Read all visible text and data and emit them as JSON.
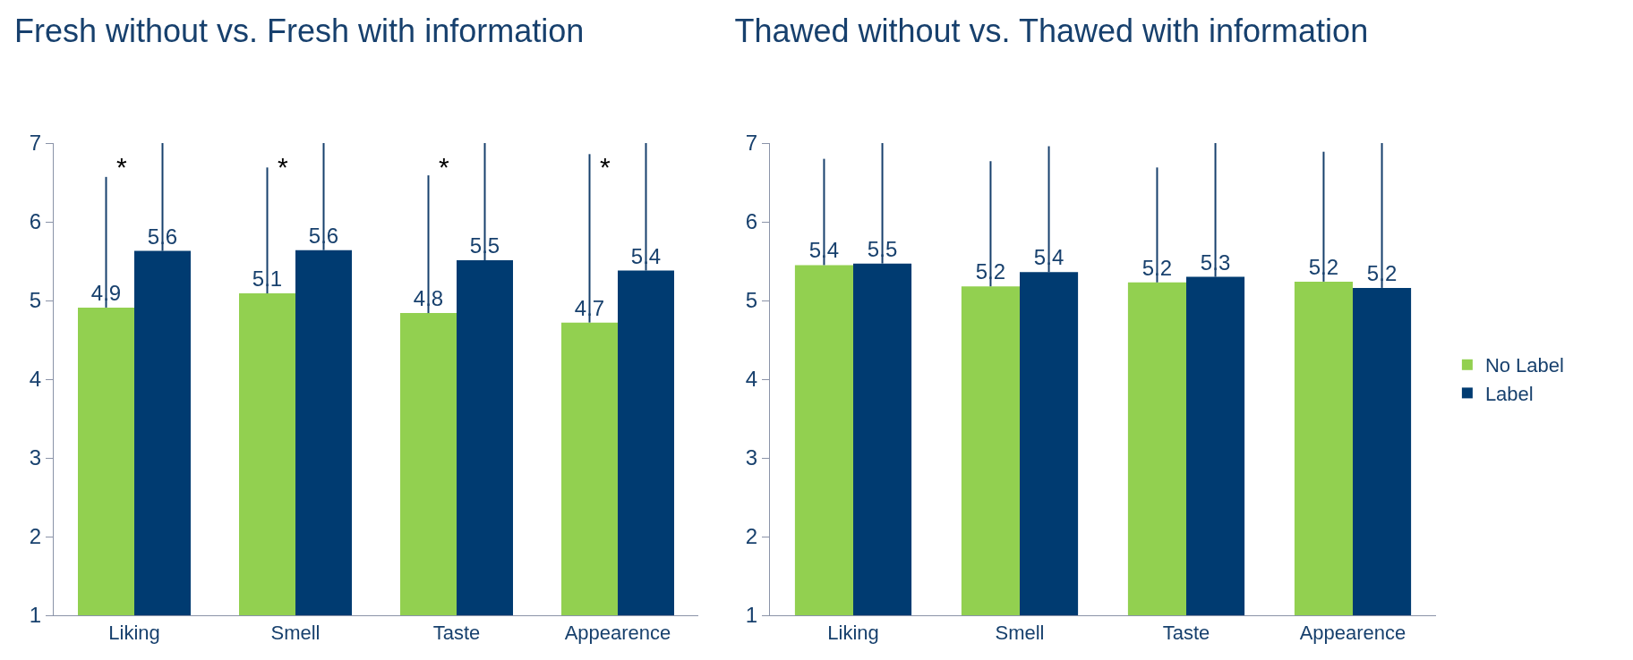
{
  "chart_data": [
    {
      "type": "bar",
      "title": "Fresh without vs. Fresh with information",
      "categories": [
        "Liking",
        "Smell",
        "Taste",
        "Appearence"
      ],
      "series": [
        {
          "color": "#92d050",
          "values": [
            4.91,
            5.09,
            4.84,
            4.72
          ],
          "value_labels": [
            "4.9",
            "5.1",
            "4.8",
            "4.7"
          ],
          "errors": [
            [
              4.91,
              6.57
            ],
            [
              5.09,
              6.69
            ],
            [
              4.84,
              6.59
            ],
            [
              4.72,
              6.86
            ]
          ]
        },
        {
          "color": "#003b71",
          "values": [
            5.63,
            5.64,
            5.51,
            5.38
          ],
          "value_labels": [
            "5.6",
            "5.6",
            "5.5",
            "5.4"
          ],
          "errors": [
            [
              5.63,
              7
            ],
            [
              5.64,
              7
            ],
            [
              5.51,
              7
            ],
            [
              5.38,
              7
            ]
          ]
        }
      ],
      "annotations": [
        "*",
        "*",
        "*",
        "*"
      ],
      "ylim": [
        1,
        7
      ],
      "yticks": [
        1,
        2,
        3,
        4,
        5,
        6,
        7
      ],
      "grid": false,
      "legend": false
    },
    {
      "type": "bar",
      "title": "Thawed without vs. Thawed with information",
      "categories": [
        "Liking",
        "Smell",
        "Taste",
        "Appearence"
      ],
      "series": [
        {
          "name": "No Label",
          "color": "#92d050",
          "values": [
            5.45,
            5.18,
            5.23,
            5.24
          ],
          "value_labels": [
            "5.4",
            "5.2",
            "5.2",
            "5.2"
          ],
          "errors": [
            [
              5.45,
              6.8
            ],
            [
              5.18,
              6.77
            ],
            [
              5.23,
              6.69
            ],
            [
              5.24,
              6.89
            ]
          ]
        },
        {
          "name": "Label",
          "color": "#003b71",
          "values": [
            5.47,
            5.36,
            5.3,
            5.16
          ],
          "value_labels": [
            "5.5",
            "5.4",
            "5.3",
            "5.2"
          ],
          "errors": [
            [
              5.47,
              7
            ],
            [
              5.36,
              6.96
            ],
            [
              5.3,
              7
            ],
            [
              5.16,
              7
            ]
          ]
        }
      ],
      "ylim": [
        1,
        7
      ],
      "yticks": [
        1,
        2,
        3,
        4,
        5,
        6,
        7
      ],
      "grid": false,
      "legend": "right"
    }
  ]
}
